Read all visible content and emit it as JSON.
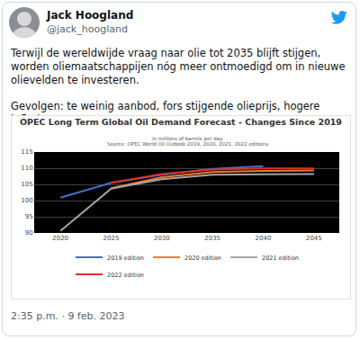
{
  "tweet": {
    "name": "Jack Hoogland",
    "handle": "@jack_hoogland",
    "paragraphs": [
      "Terwijl de wereldwijde vraag naar olie tot 2035 blijft stijgen, worden oliemaatschappijen nóg meer ontmoedigd om in nieuwe olievelden te investeren.",
      "Gevolgen: te weinig aanbod, fors stijgende olieprijs, hogere inflatie."
    ],
    "timestamp": "2:35 p.m. · 9 feb. 2023"
  },
  "chart_data": {
    "type": "line",
    "title": "OPEC Long Term Global Oil Demand Forecast - Changes Since 2019",
    "subtitle": "in millions of barrels per day",
    "source": "Source: OPEC World Oil Outlook 2019, 2020, 2021, 2022 editions",
    "categories": [
      "2020",
      "2025",
      "2030",
      "2035",
      "2040",
      "2045"
    ],
    "series": [
      {
        "name": "2019 edition",
        "color": "#4472c4",
        "values": [
          100.9,
          105.5,
          108.0,
          109.8,
          110.6,
          null
        ]
      },
      {
        "name": "2020 edition",
        "color": "#ed7d31",
        "values": [
          null,
          103.8,
          107.2,
          108.8,
          109.2,
          109.3
        ]
      },
      {
        "name": "2021 edition",
        "color": "#a5a5a5",
        "values": [
          90.6,
          103.7,
          106.6,
          108.0,
          108.1,
          108.2
        ]
      },
      {
        "name": "2022 edition",
        "color": "#e0302a",
        "values": [
          null,
          105.5,
          108.2,
          109.6,
          109.9,
          109.9
        ]
      }
    ],
    "ylim": [
      90,
      115
    ],
    "yticks": [
      90,
      95,
      100,
      105,
      110,
      115
    ],
    "grid": true,
    "legend": "bottom"
  }
}
